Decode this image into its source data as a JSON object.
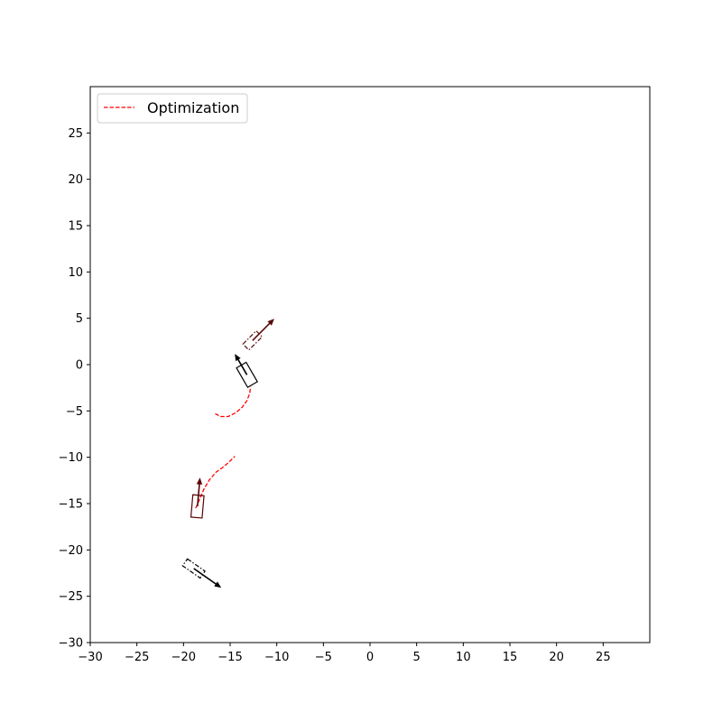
{
  "chart_data": {
    "type": "line",
    "title": "",
    "xlabel": "",
    "ylabel": "",
    "xlim": [
      -30,
      30
    ],
    "ylim": [
      -30,
      30
    ],
    "xticks": [
      -30,
      -25,
      -20,
      -15,
      -10,
      -5,
      0,
      5,
      10,
      15,
      20,
      25
    ],
    "yticks": [
      -30,
      -25,
      -20,
      -15,
      -10,
      -5,
      0,
      5,
      10,
      15,
      20,
      25
    ],
    "xtick_labels": [
      "−30",
      "−25",
      "−20",
      "−15",
      "−10",
      "−5",
      "0",
      "5",
      "10",
      "15",
      "20",
      "25"
    ],
    "ytick_labels": [
      "−30",
      "−25",
      "−20",
      "−15",
      "−10",
      "−5",
      "0",
      "5",
      "10",
      "15",
      "20",
      "25"
    ],
    "grid": false,
    "legend": {
      "location": "top-left",
      "entries": [
        {
          "label": "Optimization",
          "style": "dashed",
          "color": "#ff0000"
        }
      ]
    },
    "series": [
      {
        "name": "Optimization",
        "style": "dashed",
        "color": "#ff0000",
        "x": [
          -16.6,
          -16.0,
          -15.2,
          -14.4,
          -13.7,
          -13.2,
          -12.9,
          -12.8
        ],
        "y": [
          -5.3,
          -5.6,
          -5.6,
          -5.2,
          -4.6,
          -3.9,
          -3.1,
          -2.4
        ]
      },
      {
        "name": "Optimization",
        "style": "dashed",
        "color": "#ff0000",
        "x": [
          -18.7,
          -18.3,
          -17.8,
          -17.2,
          -16.5,
          -15.8,
          -15.1,
          -14.5
        ],
        "y": [
          -15.5,
          -14.6,
          -13.4,
          -12.4,
          -11.6,
          -11.1,
          -10.5,
          -9.9
        ]
      }
    ],
    "vehicles": [
      {
        "x": -13.2,
        "y": -1.1,
        "width": 1.2,
        "length": 2.4,
        "heading_deg": 120,
        "style": "solid",
        "color": "#000000",
        "arrow_length": 2.5
      },
      {
        "x": -12.6,
        "y": 2.6,
        "width": 0.9,
        "length": 2.0,
        "heading_deg": 45,
        "style": "dashdot",
        "color": "#5a0a0a",
        "arrow_length": 3.2
      },
      {
        "x": -18.5,
        "y": -15.3,
        "width": 1.2,
        "length": 2.4,
        "heading_deg": 85,
        "style": "solid",
        "color": "#5a0000",
        "arrow_length": 3.0
      },
      {
        "x": -18.9,
        "y": -22.0,
        "width": 0.9,
        "length": 2.3,
        "heading_deg": -35,
        "style": "dashdot",
        "color": "#000000",
        "arrow_length": 3.5
      }
    ]
  }
}
